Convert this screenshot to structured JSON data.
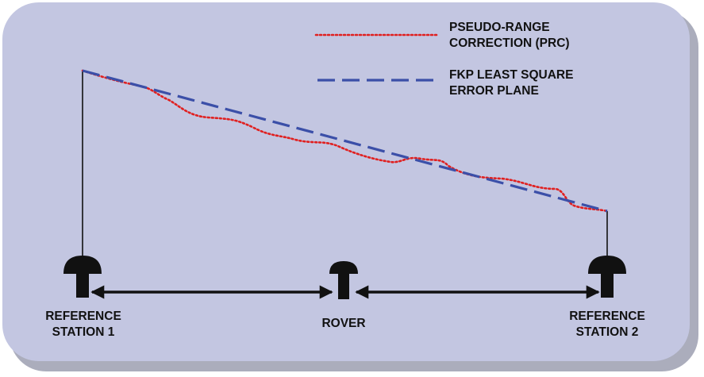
{
  "legend": {
    "prc": {
      "line1": "PSEUDO-RANGE",
      "line2": "CORRECTION (PRC)",
      "color": "#e02020",
      "style": "dotted"
    },
    "fkp": {
      "line1": "FKP LEAST SQUARE",
      "line2": "ERROR PLANE",
      "color": "#3b4fa8",
      "style": "dashed"
    }
  },
  "stations": {
    "ref1": {
      "line1": "REFERENCE",
      "line2": "STATION 1"
    },
    "rover": {
      "label": "ROVER"
    },
    "ref2": {
      "line1": "REFERENCE",
      "line2": "STATION 2"
    }
  },
  "colors": {
    "panel_fill": "#c3c6e1",
    "panel_shadow": "#8f92a6",
    "antenna": "#111111",
    "arrow": "#111111"
  }
}
